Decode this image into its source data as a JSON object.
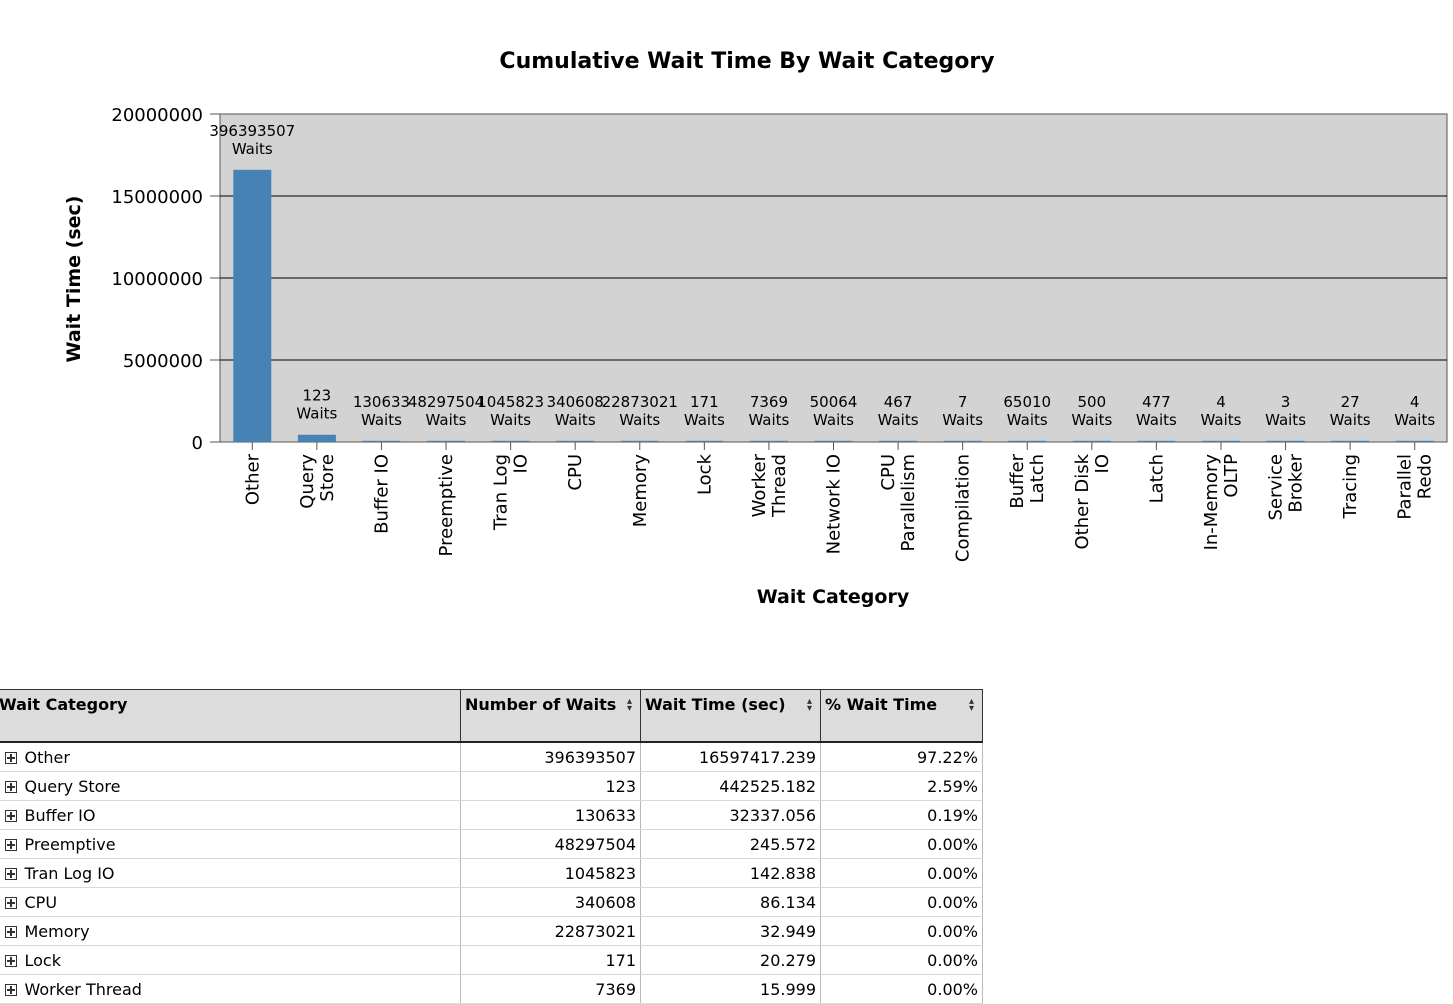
{
  "chart_data": {
    "type": "bar",
    "title": "Cumulative Wait Time By Wait Category",
    "xlabel": "Wait Category",
    "ylabel": "Wait Time (sec)",
    "ylim": [
      0,
      20000000
    ],
    "yticks": [
      "0",
      "5000000",
      "10000000",
      "15000000",
      "20000000"
    ],
    "grid": true,
    "categories": [
      "Other",
      "Query Store",
      "Buffer IO",
      "Preemptive",
      "Tran Log IO",
      "CPU",
      "Memory",
      "Lock",
      "Worker Thread",
      "Network IO",
      "CPU Parallelism",
      "Compilation",
      "Buffer Latch",
      "Other Disk IO",
      "Latch",
      "In-Memory OLTP",
      "Service Broker",
      "Tracing",
      "Parallel Redo"
    ],
    "values": [
      16597417.239,
      442525.182,
      32337.056,
      245.572,
      142.838,
      86.134,
      32.949,
      20.279,
      15.999,
      0,
      0,
      0,
      0,
      0,
      0,
      0,
      0,
      0,
      0
    ],
    "data_labels": [
      "396393507",
      "123",
      "130633",
      "48297504",
      "1045823",
      "340608",
      "22873021",
      "171",
      "7369",
      "50064",
      "467",
      "7",
      "65010",
      "500",
      "477",
      "4",
      "3",
      "27",
      "4"
    ],
    "data_label_suffix": "Waits"
  },
  "table": {
    "columns": [
      "Wait Category",
      "Number of Waits",
      "Wait Time (sec)",
      "% Wait Time"
    ],
    "rows": [
      [
        "Other",
        "396393507",
        "16597417.239",
        "97.22%"
      ],
      [
        "Query Store",
        "123",
        "442525.182",
        "2.59%"
      ],
      [
        "Buffer IO",
        "130633",
        "32337.056",
        "0.19%"
      ],
      [
        "Preemptive",
        "48297504",
        "245.572",
        "0.00%"
      ],
      [
        "Tran Log IO",
        "1045823",
        "142.838",
        "0.00%"
      ],
      [
        "CPU",
        "340608",
        "86.134",
        "0.00%"
      ],
      [
        "Memory",
        "22873021",
        "32.949",
        "0.00%"
      ],
      [
        "Lock",
        "171",
        "20.279",
        "0.00%"
      ],
      [
        "Worker Thread",
        "7369",
        "15.999",
        "0.00%"
      ]
    ]
  },
  "colors": {
    "bar": "#4682b4",
    "plot_bg": "#d3d3d3"
  }
}
